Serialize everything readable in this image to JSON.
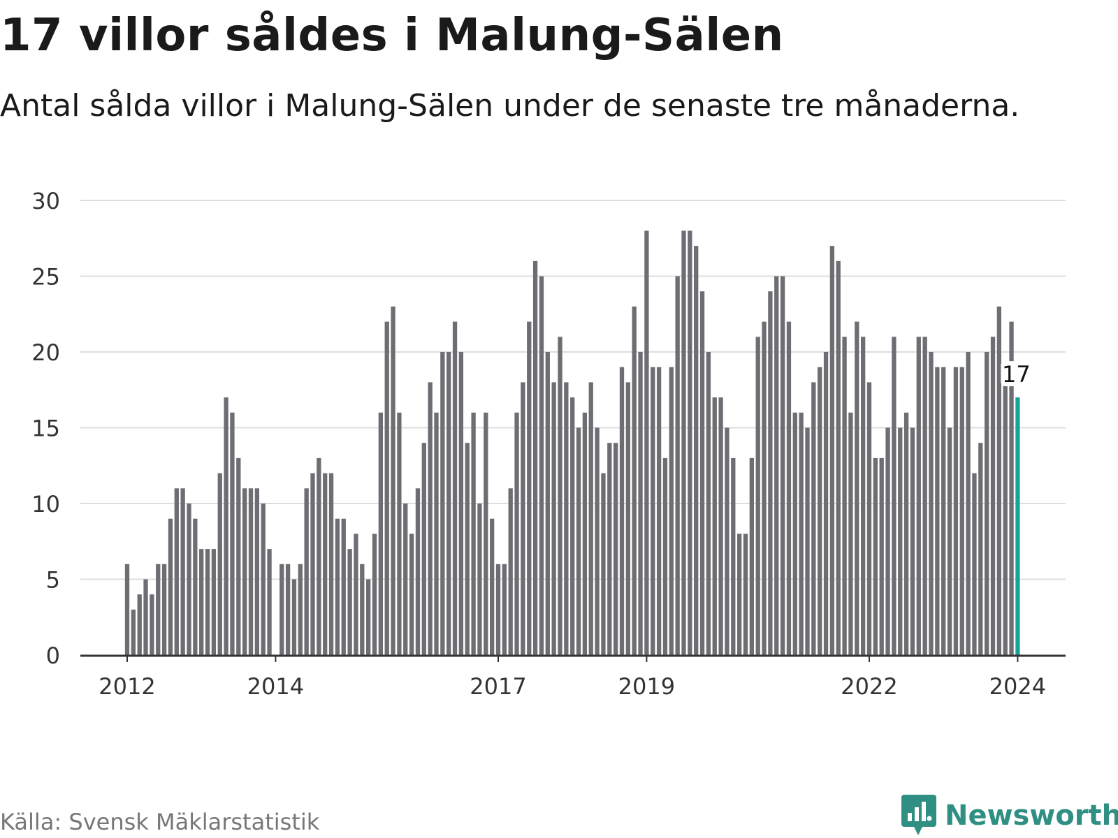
{
  "title": "17 villor såldes i Malung-Sälen",
  "subtitle": "Antal sålda villor i Malung-Sälen under de senaste tre månaderna.",
  "source": "Källa: Svensk Mäklarstatistik",
  "brand": {
    "name": "Newsworthy",
    "icon": "newsworthy-logo-icon"
  },
  "colors": {
    "bar": "#6e6d73",
    "highlight": "#17a398",
    "grid": "#dddddd",
    "axis": "#333333",
    "text": "#333333",
    "brand": "#2f8f82"
  },
  "chart_data": {
    "type": "bar",
    "title": "17 villor såldes i Malung-Sälen",
    "xlabel": "",
    "ylabel": "",
    "ylim": [
      0,
      30
    ],
    "y_ticks": [
      0,
      5,
      10,
      15,
      20,
      25,
      30
    ],
    "grid": true,
    "start": "2012-01",
    "x_ticks": [
      {
        "label": "2012",
        "index": 0
      },
      {
        "label": "2014",
        "index": 24
      },
      {
        "label": "2017",
        "index": 60
      },
      {
        "label": "2019",
        "index": 84
      },
      {
        "label": "2022",
        "index": 120
      },
      {
        "label": "2024",
        "index": 144
      }
    ],
    "highlight": {
      "index": 144,
      "value": 17,
      "label": "17"
    },
    "values": [
      6,
      3,
      4,
      5,
      4,
      6,
      6,
      9,
      11,
      11,
      10,
      9,
      7,
      7,
      7,
      12,
      17,
      16,
      13,
      11,
      11,
      11,
      10,
      7,
      0,
      6,
      6,
      5,
      6,
      11,
      12,
      13,
      12,
      12,
      9,
      9,
      7,
      8,
      6,
      5,
      8,
      16,
      22,
      23,
      16,
      10,
      8,
      11,
      14,
      18,
      16,
      20,
      20,
      22,
      20,
      14,
      16,
      10,
      16,
      9,
      6,
      6,
      11,
      16,
      18,
      22,
      26,
      25,
      20,
      18,
      21,
      18,
      17,
      15,
      16,
      18,
      15,
      12,
      14,
      14,
      19,
      18,
      23,
      20,
      28,
      19,
      19,
      13,
      19,
      25,
      28,
      28,
      27,
      24,
      20,
      17,
      17,
      15,
      13,
      8,
      8,
      13,
      21,
      22,
      24,
      25,
      25,
      22,
      16,
      16,
      15,
      18,
      19,
      20,
      27,
      26,
      21,
      16,
      22,
      21,
      18,
      13,
      13,
      15,
      21,
      15,
      16,
      15,
      21,
      21,
      20,
      19,
      19,
      15,
      19,
      19,
      20,
      12,
      14,
      20,
      21,
      23,
      18,
      22,
      17
    ]
  }
}
